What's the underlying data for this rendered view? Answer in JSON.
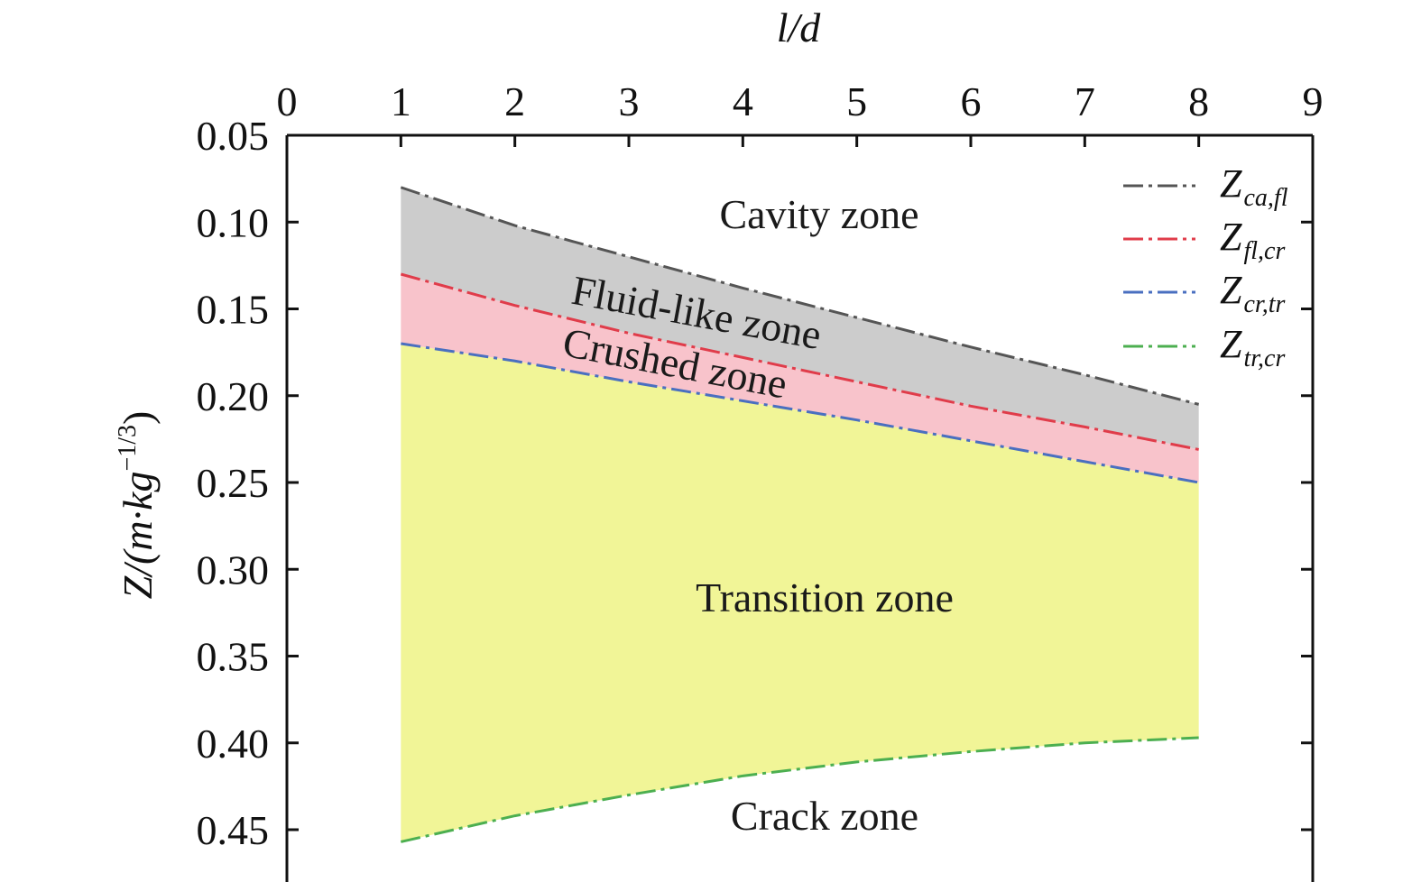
{
  "chart_data": {
    "type": "area",
    "title": "",
    "xlabel": "l/d",
    "ylabel": "Z/(m·kg^-1/3)",
    "ylabel_parts": {
      "main": "Z/(m·kg",
      "sup": "−1/3",
      "close": ")"
    },
    "xlim": [
      0,
      9
    ],
    "ylim": [
      0.05,
      0.47
    ],
    "y_inverted": true,
    "x_axis_position": "top",
    "x_ticks": [
      "0",
      "1",
      "2",
      "3",
      "4",
      "5",
      "6",
      "7",
      "8",
      "9"
    ],
    "y_ticks": [
      "0.05",
      "0.10",
      "0.15",
      "0.20",
      "0.25",
      "0.30",
      "0.35",
      "0.40",
      "0.45"
    ],
    "x": [
      1,
      2,
      3,
      4,
      5,
      6,
      7,
      8
    ],
    "series": [
      {
        "name": "Z_ca,fl",
        "label_main": "Z",
        "label_sub": "ca,fl",
        "color": "#555555",
        "values": [
          0.08,
          0.102,
          0.12,
          0.138,
          0.155,
          0.172,
          0.188,
          0.205
        ]
      },
      {
        "name": "Z_fl,cr",
        "label_main": "Z",
        "label_sub": "fl,cr",
        "color": "#e03c4a",
        "values": [
          0.13,
          0.148,
          0.164,
          0.178,
          0.192,
          0.206,
          0.218,
          0.231
        ]
      },
      {
        "name": "Z_cr,tr",
        "label_main": "Z",
        "label_sub": "cr,tr",
        "color": "#4a6fc0",
        "values": [
          0.17,
          0.18,
          0.192,
          0.203,
          0.214,
          0.226,
          0.238,
          0.25
        ]
      },
      {
        "name": "Z_tr,cr",
        "label_main": "Z",
        "label_sub": "tr,cr",
        "color": "#4caf50",
        "values": [
          0.457,
          0.442,
          0.43,
          0.419,
          0.411,
          0.405,
          0.4,
          0.397
        ]
      }
    ],
    "fills": [
      {
        "between": [
          0,
          1
        ],
        "color": "#cccccc"
      },
      {
        "between": [
          1,
          2
        ],
        "color": "#f8c3cb"
      },
      {
        "between": [
          2,
          3
        ],
        "color": "#f1f597"
      }
    ],
    "zone_labels": [
      "Cavity zone",
      "Fluid-like zone",
      "Crushed zone",
      "Transition zone",
      "Crack zone"
    ],
    "legend_position": "top-right",
    "grid": false
  }
}
